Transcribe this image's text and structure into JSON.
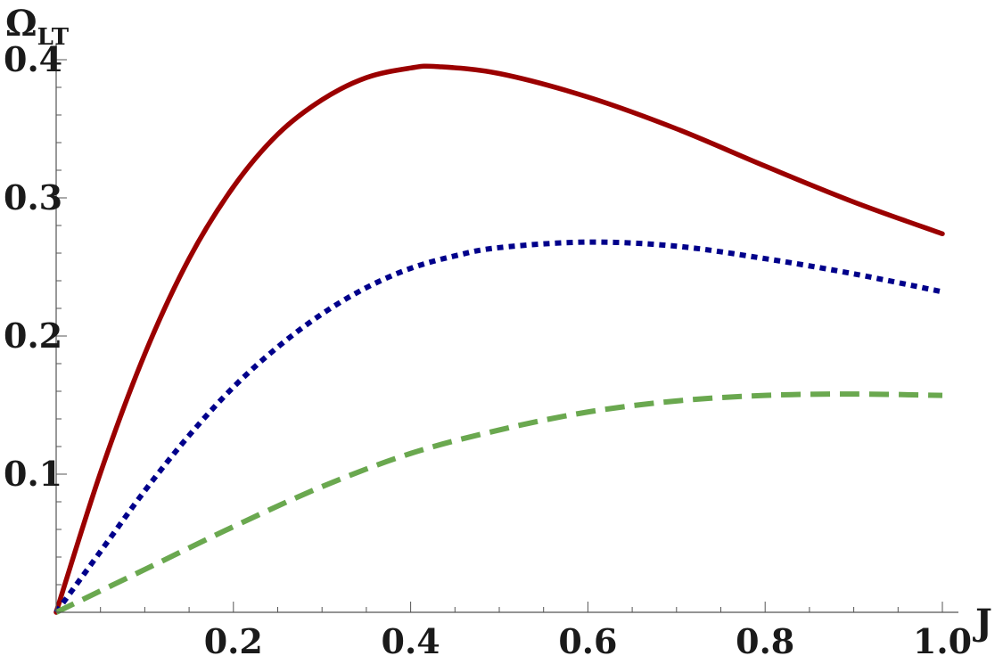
{
  "chart_data": {
    "type": "line",
    "xlabel": "J",
    "ylabel": {
      "main": "Ω",
      "sub": "LT"
    },
    "xlim": [
      0,
      1.0
    ],
    "ylim": [
      0,
      0.4
    ],
    "xticks": [
      0.2,
      0.4,
      0.6,
      0.8,
      1.0
    ],
    "xtick_labels": [
      "0.2",
      "0.4",
      "0.6",
      "0.8",
      "1.0"
    ],
    "yticks": [
      0.1,
      0.2,
      0.3,
      0.4
    ],
    "ytick_labels": [
      "0.1",
      "0.2",
      "0.3",
      "0.4"
    ],
    "grid": false,
    "legend": "none",
    "series": [
      {
        "style": "solid",
        "color": "#9b0000",
        "x": [
          0,
          0.05,
          0.1,
          0.15,
          0.2,
          0.25,
          0.3,
          0.35,
          0.4,
          0.43,
          0.5,
          0.6,
          0.7,
          0.8,
          0.9,
          1.0
        ],
        "y": [
          0,
          0.101,
          0.187,
          0.256,
          0.308,
          0.346,
          0.371,
          0.387,
          0.394,
          0.395,
          0.39,
          0.373,
          0.35,
          0.323,
          0.297,
          0.274
        ]
      },
      {
        "style": "dotted",
        "color": "#00008b",
        "x": [
          0,
          0.05,
          0.1,
          0.15,
          0.2,
          0.25,
          0.3,
          0.35,
          0.4,
          0.45,
          0.5,
          0.6,
          0.7,
          0.8,
          0.9,
          1.0
        ],
        "y": [
          0,
          0.044,
          0.088,
          0.128,
          0.163,
          0.192,
          0.216,
          0.235,
          0.249,
          0.258,
          0.264,
          0.268,
          0.265,
          0.256,
          0.245,
          0.232
        ]
      },
      {
        "style": "dashed",
        "color": "#6aa84f",
        "x": [
          0,
          0.1,
          0.2,
          0.3,
          0.4,
          0.5,
          0.6,
          0.7,
          0.8,
          0.9,
          1.0
        ],
        "y": [
          0,
          0.031,
          0.062,
          0.091,
          0.115,
          0.132,
          0.145,
          0.153,
          0.157,
          0.158,
          0.157
        ]
      }
    ]
  }
}
